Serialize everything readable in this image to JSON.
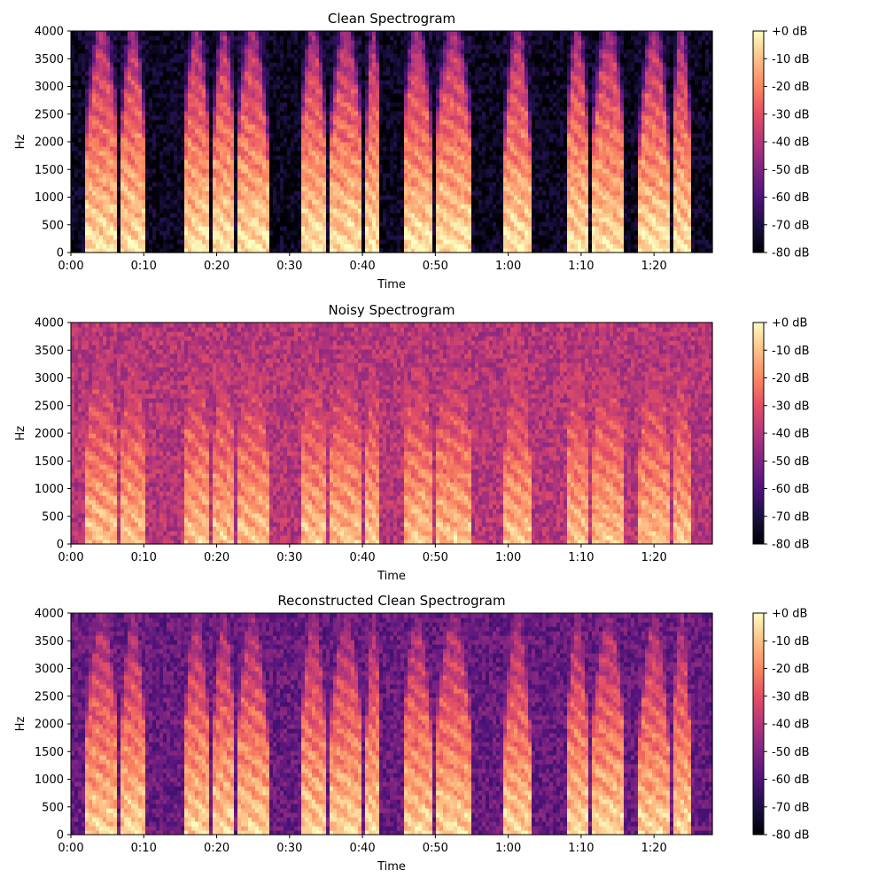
{
  "chart_data": [
    {
      "type": "heatmap",
      "title": "Clean Spectrogram",
      "xlabel": "Time",
      "ylabel": "Hz",
      "xlim": [
        0,
        88
      ],
      "ylim": [
        0,
        4000
      ],
      "x_ticks": [
        {
          "value": 0,
          "label": "0:00"
        },
        {
          "value": 10,
          "label": "0:10"
        },
        {
          "value": 20,
          "label": "0:20"
        },
        {
          "value": 30,
          "label": "0:30"
        },
        {
          "value": 40,
          "label": "0:40"
        },
        {
          "value": 50,
          "label": "0:50"
        },
        {
          "value": 60,
          "label": "1:00"
        },
        {
          "value": 70,
          "label": "1:10"
        },
        {
          "value": 80,
          "label": "1:20"
        }
      ],
      "y_ticks": [
        0,
        500,
        1000,
        1500,
        2000,
        2500,
        3000,
        3500,
        4000
      ],
      "colorbar": {
        "range": [
          -80,
          0
        ],
        "ticks": [
          {
            "value": 0,
            "label": "+0 dB"
          },
          {
            "value": -10,
            "label": "-10 dB"
          },
          {
            "value": -20,
            "label": "-20 dB"
          },
          {
            "value": -30,
            "label": "-30 dB"
          },
          {
            "value": -40,
            "label": "-40 dB"
          },
          {
            "value": -50,
            "label": "-50 dB"
          },
          {
            "value": -60,
            "label": "-60 dB"
          },
          {
            "value": -70,
            "label": "-70 dB"
          },
          {
            "value": -80,
            "label": "-80 dB"
          }
        ]
      },
      "colormap": "magma",
      "background_db": -72,
      "speech_segments_s": [
        [
          2,
          6.5
        ],
        [
          6.8,
          10.2
        ],
        [
          15.5,
          19
        ],
        [
          19.5,
          22.5
        ],
        [
          22.8,
          27
        ],
        [
          31.5,
          35
        ],
        [
          35.5,
          40
        ],
        [
          40.5,
          42.5
        ],
        [
          45.5,
          49.5
        ],
        [
          50,
          55
        ],
        [
          59.5,
          63
        ],
        [
          68,
          71
        ],
        [
          71.5,
          76
        ],
        [
          78,
          82
        ],
        [
          82.5,
          85
        ]
      ]
    },
    {
      "type": "heatmap",
      "title": "Noisy Spectrogram",
      "xlabel": "Time",
      "ylabel": "Hz",
      "xlim": [
        0,
        88
      ],
      "ylim": [
        0,
        4000
      ],
      "x_ticks": [
        {
          "value": 0,
          "label": "0:00"
        },
        {
          "value": 10,
          "label": "0:10"
        },
        {
          "value": 20,
          "label": "0:20"
        },
        {
          "value": 30,
          "label": "0:30"
        },
        {
          "value": 40,
          "label": "0:40"
        },
        {
          "value": 50,
          "label": "0:50"
        },
        {
          "value": 60,
          "label": "1:00"
        },
        {
          "value": 70,
          "label": "1:10"
        },
        {
          "value": 80,
          "label": "1:20"
        }
      ],
      "y_ticks": [
        0,
        500,
        1000,
        1500,
        2000,
        2500,
        3000,
        3500,
        4000
      ],
      "colorbar": {
        "range": [
          -80,
          0
        ],
        "ticks": [
          {
            "value": 0,
            "label": "+0 dB"
          },
          {
            "value": -10,
            "label": "-10 dB"
          },
          {
            "value": -20,
            "label": "-20 dB"
          },
          {
            "value": -30,
            "label": "-30 dB"
          },
          {
            "value": -40,
            "label": "-40 dB"
          },
          {
            "value": -50,
            "label": "-50 dB"
          },
          {
            "value": -60,
            "label": "-60 dB"
          },
          {
            "value": -70,
            "label": "-70 dB"
          },
          {
            "value": -80,
            "label": "-80 dB"
          }
        ]
      },
      "colormap": "magma",
      "background_db": -40,
      "speech_segments_s": [
        [
          2,
          6.5
        ],
        [
          6.8,
          10.2
        ],
        [
          15.5,
          19
        ],
        [
          19.5,
          22.5
        ],
        [
          22.8,
          27
        ],
        [
          31.5,
          35
        ],
        [
          35.5,
          40
        ],
        [
          40.5,
          42.5
        ],
        [
          45.5,
          49.5
        ],
        [
          50,
          55
        ],
        [
          59.5,
          63
        ],
        [
          68,
          71
        ],
        [
          71.5,
          76
        ],
        [
          78,
          82
        ],
        [
          82.5,
          85
        ]
      ]
    },
    {
      "type": "heatmap",
      "title": "Reconstructed Clean Spectrogram",
      "xlabel": "Time",
      "ylabel": "Hz",
      "xlim": [
        0,
        88
      ],
      "ylim": [
        0,
        4000
      ],
      "x_ticks": [
        {
          "value": 0,
          "label": "0:00"
        },
        {
          "value": 10,
          "label": "0:10"
        },
        {
          "value": 20,
          "label": "0:20"
        },
        {
          "value": 30,
          "label": "0:30"
        },
        {
          "value": 40,
          "label": "0:40"
        },
        {
          "value": 50,
          "label": "0:50"
        },
        {
          "value": 60,
          "label": "1:00"
        },
        {
          "value": 70,
          "label": "1:10"
        },
        {
          "value": 80,
          "label": "1:20"
        }
      ],
      "y_ticks": [
        0,
        500,
        1000,
        1500,
        2000,
        2500,
        3000,
        3500,
        4000
      ],
      "colorbar": {
        "range": [
          -80,
          0
        ],
        "ticks": [
          {
            "value": 0,
            "label": "+0 dB"
          },
          {
            "value": -10,
            "label": "-10 dB"
          },
          {
            "value": -20,
            "label": "-20 dB"
          },
          {
            "value": -30,
            "label": "-30 dB"
          },
          {
            "value": -40,
            "label": "-40 dB"
          },
          {
            "value": -50,
            "label": "-50 dB"
          },
          {
            "value": -60,
            "label": "-60 dB"
          },
          {
            "value": -70,
            "label": "-70 dB"
          },
          {
            "value": -80,
            "label": "-80 dB"
          }
        ]
      },
      "colormap": "magma",
      "background_db": -55,
      "speech_segments_s": [
        [
          2,
          6.5
        ],
        [
          6.8,
          10.2
        ],
        [
          15.5,
          19
        ],
        [
          19.5,
          22.5
        ],
        [
          22.8,
          27
        ],
        [
          31.5,
          35
        ],
        [
          35.5,
          40
        ],
        [
          40.5,
          42.5
        ],
        [
          45.5,
          49.5
        ],
        [
          50,
          55
        ],
        [
          59.5,
          63
        ],
        [
          68,
          71
        ],
        [
          71.5,
          76
        ],
        [
          78,
          82
        ],
        [
          82.5,
          85
        ]
      ]
    }
  ]
}
